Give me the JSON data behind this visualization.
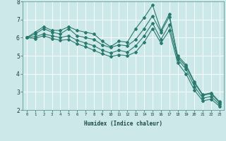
{
  "xlabel": "Humidex (Indice chaleur)",
  "x_values": [
    0,
    1,
    2,
    3,
    4,
    5,
    6,
    7,
    8,
    9,
    10,
    11,
    12,
    13,
    14,
    15,
    16,
    17,
    18,
    19,
    20,
    21,
    22,
    23
  ],
  "series": {
    "line1": [
      6.0,
      6.3,
      6.6,
      6.4,
      6.4,
      6.6,
      6.4,
      6.3,
      6.2,
      5.8,
      5.5,
      5.8,
      5.75,
      6.5,
      7.1,
      7.8,
      6.4,
      7.3,
      4.9,
      4.4,
      3.5,
      2.8,
      2.9,
      2.4
    ],
    "line2": [
      6.0,
      6.2,
      6.5,
      6.3,
      6.2,
      6.5,
      6.1,
      6.0,
      5.9,
      5.6,
      5.45,
      5.6,
      5.55,
      5.9,
      6.5,
      7.2,
      6.3,
      7.15,
      5.0,
      4.5,
      3.55,
      2.85,
      2.95,
      2.45
    ],
    "line3": [
      6.0,
      6.05,
      6.2,
      6.1,
      6.0,
      6.1,
      5.85,
      5.7,
      5.55,
      5.3,
      5.15,
      5.3,
      5.2,
      5.55,
      6.1,
      6.8,
      5.9,
      6.7,
      4.8,
      4.25,
      3.3,
      2.65,
      2.75,
      2.3
    ],
    "line4": [
      6.0,
      5.95,
      6.1,
      5.95,
      5.85,
      5.9,
      5.65,
      5.5,
      5.3,
      5.1,
      4.95,
      5.05,
      5.0,
      5.2,
      5.75,
      6.5,
      5.7,
      6.4,
      4.6,
      4.0,
      3.1,
      2.5,
      2.6,
      2.2
    ]
  },
  "line_color": "#2a7a6f",
  "bg_color": "#cce8e8",
  "grid_color": "#b0d8d8",
  "ylim": [
    2,
    8
  ],
  "yticks": [
    2,
    3,
    4,
    5,
    6,
    7,
    8
  ],
  "xticks": [
    0,
    1,
    2,
    3,
    4,
    5,
    6,
    7,
    8,
    9,
    10,
    11,
    12,
    13,
    14,
    15,
    16,
    17,
    18,
    19,
    20,
    21,
    22,
    23
  ],
  "marker": "D",
  "markersize": 2.0,
  "linewidth": 0.8,
  "fig_width": 3.2,
  "fig_height": 2.0,
  "dpi": 100
}
